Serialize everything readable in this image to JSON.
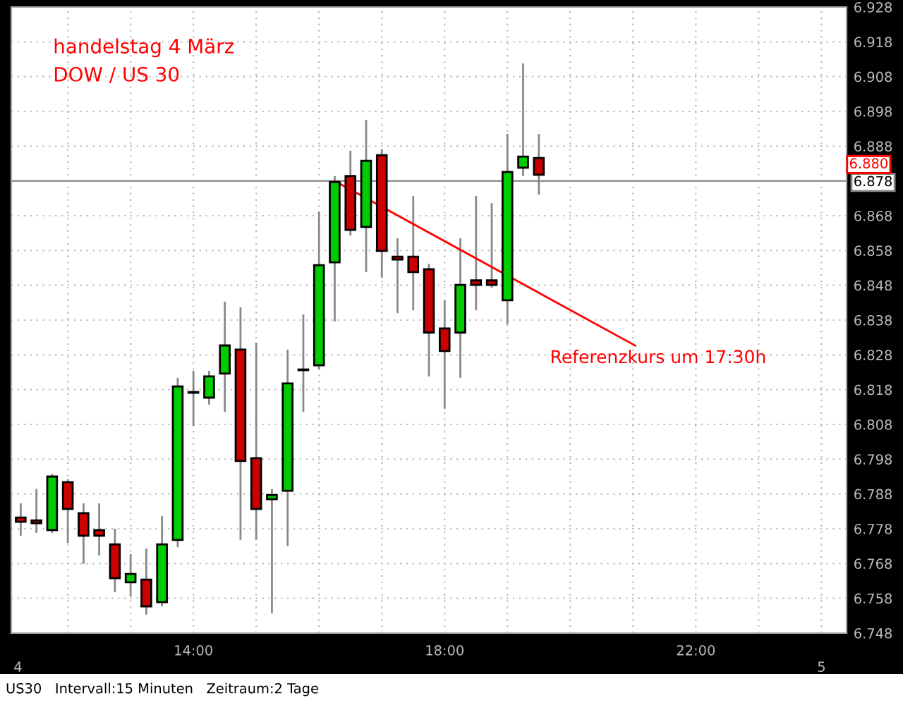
{
  "chart_data": {
    "type": "candlestick",
    "title": "handelstag 4 März",
    "subtitle": "DOW / US 30",
    "x": [
      11.25,
      11.5,
      11.75,
      12.0,
      12.25,
      12.5,
      12.75,
      13.0,
      13.25,
      13.5,
      13.75,
      14.0,
      14.25,
      14.5,
      14.75,
      15.0,
      15.25,
      15.5,
      15.75,
      16.0,
      16.25,
      16.5,
      16.75,
      17.0,
      17.25,
      17.5,
      17.75,
      18.0,
      18.25,
      18.5,
      18.75,
      19.0,
      19.25,
      19.5
    ],
    "ohlc": [
      [
        6.7812,
        6.7853,
        6.776,
        6.78
      ],
      [
        6.7804,
        6.7894,
        6.7768,
        6.7796
      ],
      [
        6.7776,
        6.7938,
        6.7768,
        6.793
      ],
      [
        6.7914,
        6.7922,
        6.7739,
        6.7837
      ],
      [
        6.7825,
        6.7853,
        6.7679,
        6.776
      ],
      [
        6.7776,
        6.7853,
        6.7703,
        6.776
      ],
      [
        6.7735,
        6.778,
        6.7598,
        6.7638
      ],
      [
        6.7626,
        6.7707,
        6.7585,
        6.765
      ],
      [
        6.7634,
        6.7723,
        6.7533,
        6.7557
      ],
      [
        6.7569,
        6.7816,
        6.7557,
        6.7735
      ],
      [
        6.7748,
        6.8214,
        6.7727,
        6.8189
      ],
      [
        6.8173,
        6.8234,
        6.8076,
        6.8171
      ],
      [
        6.8157,
        6.8234,
        6.8137,
        6.8218
      ],
      [
        6.8226,
        6.8433,
        6.8116,
        6.8307
      ],
      [
        6.8295,
        6.8417,
        6.7748,
        6.7975
      ],
      [
        6.7983,
        6.8315,
        6.7748,
        6.7837
      ],
      [
        6.7865,
        6.7894,
        6.7537,
        6.7877
      ],
      [
        6.7889,
        6.8295,
        6.7731,
        6.8198
      ],
      [
        6.8236,
        6.8396,
        6.8116,
        6.8238
      ],
      [
        6.825,
        6.8692,
        6.8238,
        6.8538
      ],
      [
        6.8546,
        6.8794,
        6.8376,
        6.8777
      ],
      [
        6.8794,
        6.8867,
        6.8623,
        6.8639
      ],
      [
        6.8648,
        6.8956,
        6.8518,
        6.8838
      ],
      [
        6.8854,
        6.8871,
        6.8502,
        6.8579
      ],
      [
        6.8562,
        6.8615,
        6.84,
        6.8554
      ],
      [
        6.8562,
        6.8737,
        6.8408,
        6.8518
      ],
      [
        6.8526,
        6.8542,
        6.8218,
        6.8344
      ],
      [
        6.8356,
        6.8437,
        6.8125,
        6.8291
      ],
      [
        6.8344,
        6.8615,
        6.8214,
        6.8481
      ],
      [
        6.8494,
        6.8737,
        6.8408,
        6.8481
      ],
      [
        6.8494,
        6.8716,
        6.8473,
        6.8481
      ],
      [
        6.8437,
        6.8915,
        6.8368,
        6.8806
      ],
      [
        6.8818,
        6.9118,
        6.8794,
        6.885
      ],
      [
        6.8846,
        6.8915,
        6.8741,
        6.8798
      ]
    ],
    "colors": [
      "#cc0000",
      "#cc0000",
      "#00cc00",
      "#cc0000",
      "#cc0000",
      "#cc0000",
      "#cc0000",
      "#00cc00",
      "#cc0000",
      "#00cc00",
      "#00cc00",
      "#808080",
      "#00cc00",
      "#00cc00",
      "#cc0000",
      "#cc0000",
      "#00cc00",
      "#00cc00",
      "#808080",
      "#00cc00",
      "#00cc00",
      "#cc0000",
      "#00cc00",
      "#cc0000",
      "#cc0000",
      "#cc0000",
      "#cc0000",
      "#cc0000",
      "#00cc00",
      "#cc0000",
      "#cc0000",
      "#00cc00",
      "#00cc00",
      "#cc0000"
    ],
    "xlim": [
      11.1,
      24.4
    ],
    "xticks": [
      {
        "value": 12,
        "label": null
      },
      {
        "value": 13,
        "label": null
      },
      {
        "value": 14,
        "label": "14:00"
      },
      {
        "value": 15,
        "label": null
      },
      {
        "value": 16,
        "label": null
      },
      {
        "value": 17,
        "label": null
      },
      {
        "value": 18,
        "label": "18:00"
      },
      {
        "value": 19,
        "label": null
      },
      {
        "value": 20,
        "label": null
      },
      {
        "value": 21,
        "label": null
      },
      {
        "value": 22,
        "label": "22:00"
      },
      {
        "value": 23,
        "label": null
      },
      {
        "value": 24,
        "label": null
      }
    ],
    "ylim": [
      6.748,
      6.928
    ],
    "yticks": [
      6.748,
      6.758,
      6.768,
      6.778,
      6.788,
      6.798,
      6.808,
      6.818,
      6.828,
      6.838,
      6.848,
      6.858,
      6.868,
      6.878,
      6.888,
      6.898,
      6.908,
      6.918,
      6.928
    ],
    "grid": true,
    "ref_lines": [
      {
        "axis": "y",
        "value": 6.878,
        "color": "#999999"
      }
    ],
    "annotations": [
      {
        "text": "Referenzkurs um 17:30h",
        "x": 16.25,
        "y": 6.878
      },
      "6.880",
      "4",
      "5",
      "US30   Intervall:15 Minuten   Zeitraum:2 Tage"
    ]
  }
}
